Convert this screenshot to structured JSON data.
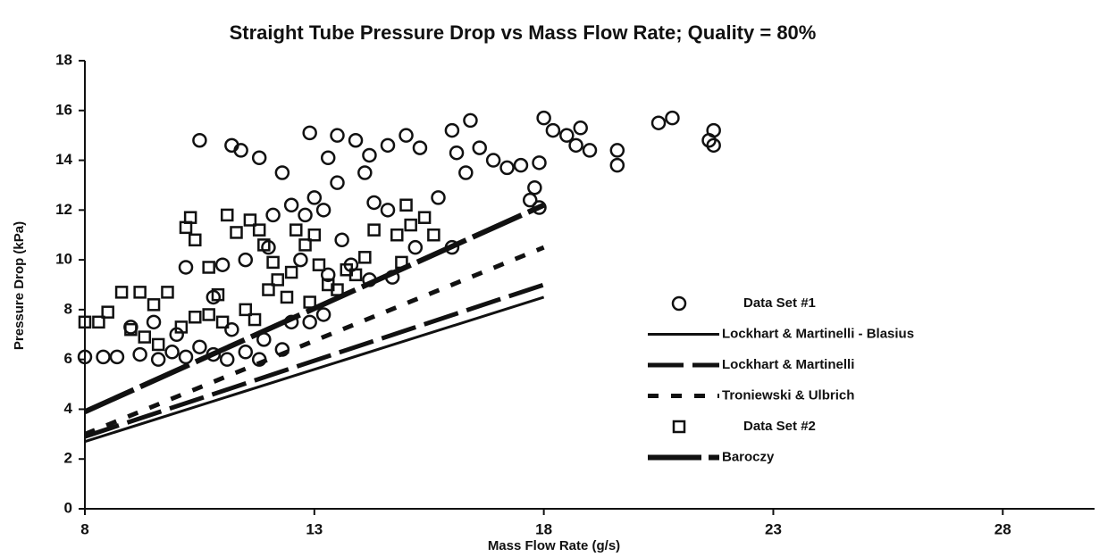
{
  "chart_data": {
    "type": "scatter",
    "title": "Straight Tube Pressure Drop vs Mass Flow Rate; Quality = 80%",
    "x_label": "Mass Flow Rate (g/s)",
    "y_label": "Pressure Drop (kPa)",
    "xlim": [
      8,
      30
    ],
    "xticks": [
      8,
      13,
      18,
      23,
      28
    ],
    "ylim": [
      0,
      18
    ],
    "yticks": [
      0,
      2,
      4,
      6,
      8,
      10,
      12,
      14,
      16,
      18
    ],
    "grid": false,
    "legend": "right",
    "series": [
      {
        "name": "Data Set #1",
        "kind": "scatter",
        "marker": "circle",
        "color": "#111111",
        "x": [
          8,
          8.4,
          8.7,
          9.2,
          9.6,
          9.9,
          10.2,
          10.5,
          10.8,
          11.1,
          11.5,
          11.8,
          10.5,
          11.2,
          11.4,
          11.8,
          12.3,
          12.9,
          13.3,
          13.5,
          13.9,
          13.5,
          14.2,
          14.6,
          15.0,
          15.3,
          14.3,
          14.6,
          14.1,
          15.7,
          16.0,
          16.4,
          16.1,
          16.3,
          16.6,
          16.9,
          17.2,
          17.5,
          17.9,
          18.0,
          18.2,
          18.5,
          18.8,
          18.7,
          19.0,
          19.6,
          19.6,
          20.5,
          20.8,
          21.6,
          21.7,
          21.7,
          17.8,
          17.7,
          17.9,
          16.0,
          15.2,
          14.7,
          14.2,
          12.5,
          12.8,
          13.0,
          13.2,
          12.1,
          11.5,
          11.0,
          10.2,
          10.8,
          12.5,
          12.9,
          13.2,
          9.5,
          10.0,
          11.2,
          11.9,
          12.3,
          9.0,
          13.3,
          13.8,
          12.0,
          13.6,
          12.7
        ],
        "values": [
          6.1,
          6.1,
          6.1,
          6.2,
          6.0,
          6.3,
          6.1,
          6.5,
          6.2,
          6.0,
          6.3,
          6.0,
          14.8,
          14.6,
          14.4,
          14.1,
          13.5,
          15.1,
          14.1,
          15.0,
          14.8,
          13.1,
          14.2,
          14.6,
          15.0,
          14.5,
          12.3,
          12.0,
          13.5,
          12.5,
          15.2,
          15.6,
          14.3,
          13.5,
          14.5,
          14.0,
          13.7,
          13.8,
          13.9,
          15.7,
          15.2,
          15.0,
          15.3,
          14.6,
          14.4,
          14.4,
          13.8,
          15.5,
          15.7,
          14.8,
          15.2,
          14.6,
          12.9,
          12.4,
          12.1,
          10.5,
          10.5,
          9.3,
          9.2,
          12.2,
          11.8,
          12.5,
          12.0,
          11.8,
          10.0,
          9.8,
          9.7,
          8.5,
          7.5,
          7.5,
          7.8,
          7.5,
          7.0,
          7.2,
          6.8,
          6.4,
          7.3,
          9.4,
          9.8,
          10.5,
          10.8,
          10.0
        ]
      },
      {
        "name": "Lockhart & Martinelli - Blasius",
        "kind": "line",
        "line_style": "thin-solid",
        "color": "#111111",
        "x": [
          8,
          18
        ],
        "values": [
          2.7,
          8.5
        ]
      },
      {
        "name": "Lockhart & Martinelli",
        "kind": "line",
        "line_style": "long-dash",
        "color": "#111111",
        "x": [
          8,
          18
        ],
        "values": [
          2.9,
          9.0
        ]
      },
      {
        "name": "Troniewski & Ulbrich",
        "kind": "line",
        "line_style": "short-dash",
        "color": "#111111",
        "x": [
          8,
          18
        ],
        "values": [
          3.0,
          10.5
        ]
      },
      {
        "name": "Data Set #2",
        "kind": "scatter",
        "marker": "square",
        "color": "#111111",
        "x": [
          8,
          8.3,
          8.5,
          8.8,
          9.2,
          9.5,
          9.8,
          9.0,
          9.3,
          9.6,
          10.1,
          10.4,
          10.2,
          10.3,
          10.4,
          10.7,
          10.9,
          11.1,
          11.3,
          11.6,
          11.8,
          11.9,
          12.1,
          12.2,
          12.4,
          12.6,
          12.8,
          13.0,
          13.1,
          13.3,
          13.5,
          13.7,
          13.9,
          14.1,
          14.3,
          14.8,
          15.0,
          15.1,
          15.4,
          15.6,
          14.9,
          11.0,
          11.5,
          12.0,
          12.5,
          10.7,
          11.7,
          12.9
        ],
        "values": [
          7.5,
          7.5,
          7.9,
          8.7,
          8.7,
          8.2,
          8.7,
          7.2,
          6.9,
          6.6,
          7.3,
          7.7,
          11.3,
          11.7,
          10.8,
          9.7,
          8.6,
          11.8,
          11.1,
          11.6,
          11.2,
          10.6,
          9.9,
          9.2,
          8.5,
          11.2,
          10.6,
          11.0,
          9.8,
          9.0,
          8.8,
          9.6,
          9.4,
          10.1,
          11.2,
          11.0,
          12.2,
          11.4,
          11.7,
          11.0,
          9.9,
          7.5,
          8.0,
          8.8,
          9.5,
          7.8,
          7.6,
          8.3
        ]
      },
      {
        "name": "Baroczy",
        "kind": "line",
        "line_style": "thick-dash",
        "color": "#111111",
        "x": [
          8,
          18
        ],
        "values": [
          3.9,
          12.2
        ]
      }
    ]
  }
}
